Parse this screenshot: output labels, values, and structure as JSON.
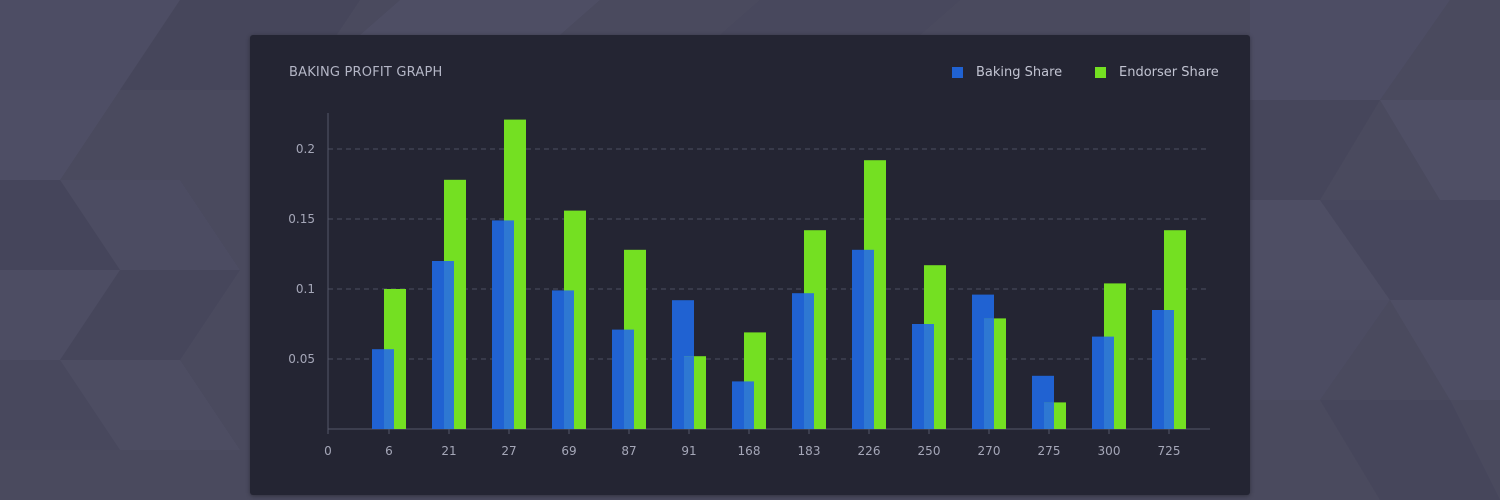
{
  "card": {
    "title": "BAKING PROFIT GRAPH"
  },
  "colors": {
    "background": "#4a4a5e",
    "card": "#242533",
    "baking": "#2062d2",
    "endorser": "#74e022",
    "axis": "#55586a",
    "grid": "#4c4f60",
    "text": "#a5a7b8"
  },
  "chart_data": {
    "type": "bar",
    "title": "BAKING PROFIT GRAPH",
    "xlabel": "",
    "ylabel": "",
    "legend_position": "top-right",
    "grid": true,
    "categories": [
      "6",
      "21",
      "27",
      "69",
      "87",
      "91",
      "168",
      "183",
      "226",
      "250",
      "270",
      "275",
      "300",
      "725"
    ],
    "x_axis_origin_label": "0",
    "ylim": [
      0,
      0.225
    ],
    "yticks": [
      0.05,
      0.1,
      0.15,
      0.2
    ],
    "ytick_labels": [
      "0.05",
      "0.1",
      "0.15",
      "0.2"
    ],
    "series": [
      {
        "name": "Baking Share",
        "color": "#2062d2",
        "values": [
          0.057,
          0.12,
          0.149,
          0.099,
          0.071,
          0.092,
          0.034,
          0.097,
          0.128,
          0.075,
          0.096,
          0.038,
          0.066,
          0.085
        ]
      },
      {
        "name": "Endorser Share",
        "color": "#74e022",
        "values": [
          0.1,
          0.178,
          0.221,
          0.156,
          0.128,
          0.052,
          0.069,
          0.142,
          0.192,
          0.117,
          0.079,
          0.019,
          0.104,
          0.142
        ]
      }
    ]
  }
}
